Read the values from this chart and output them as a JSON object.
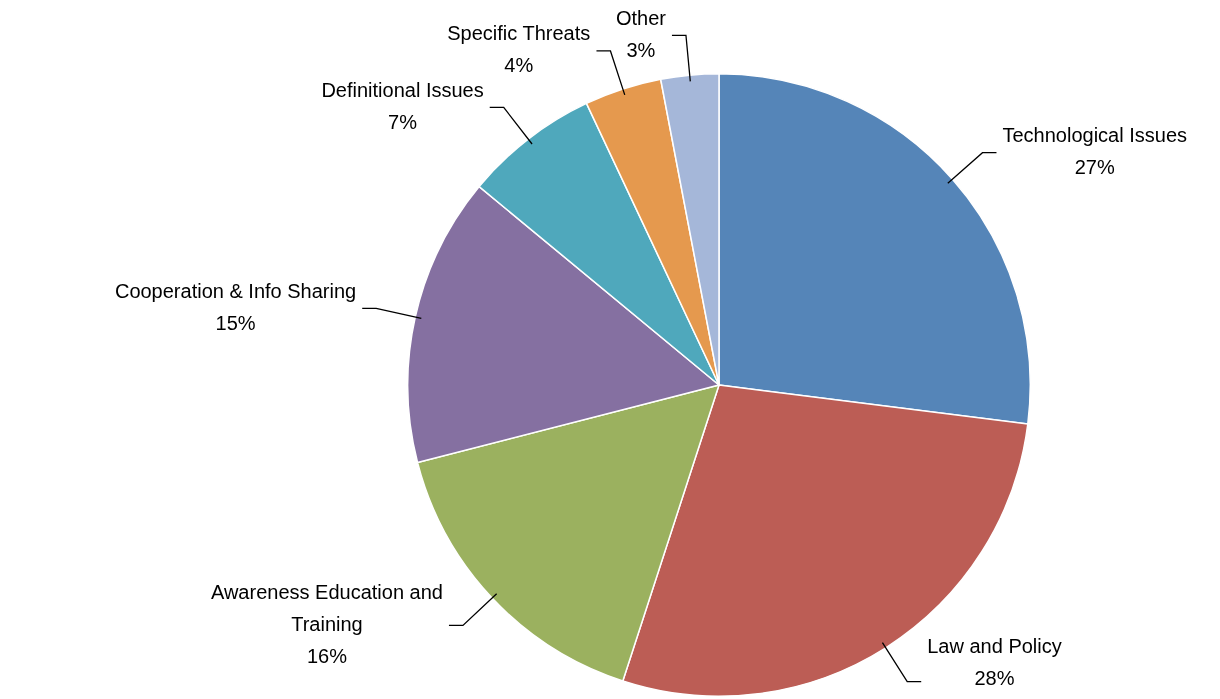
{
  "chart_data": {
    "type": "pie",
    "categories": [
      "Technological Issues",
      "Law and Policy",
      "Awareness Education and Training",
      "Cooperation & Info Sharing",
      "Definitional Issues",
      "Specific Threats",
      "Other"
    ],
    "values": [
      27,
      28,
      16,
      15,
      7,
      4,
      3
    ],
    "colors": [
      "#5585b8",
      "#bc5d55",
      "#9bb15f",
      "#8570a1",
      "#4fa8bc",
      "#e5994e",
      "#a5b7d9"
    ],
    "value_labels": [
      "27%",
      "28%",
      "16%",
      "15%",
      "7%",
      "4%",
      "3%"
    ],
    "legend": false
  }
}
